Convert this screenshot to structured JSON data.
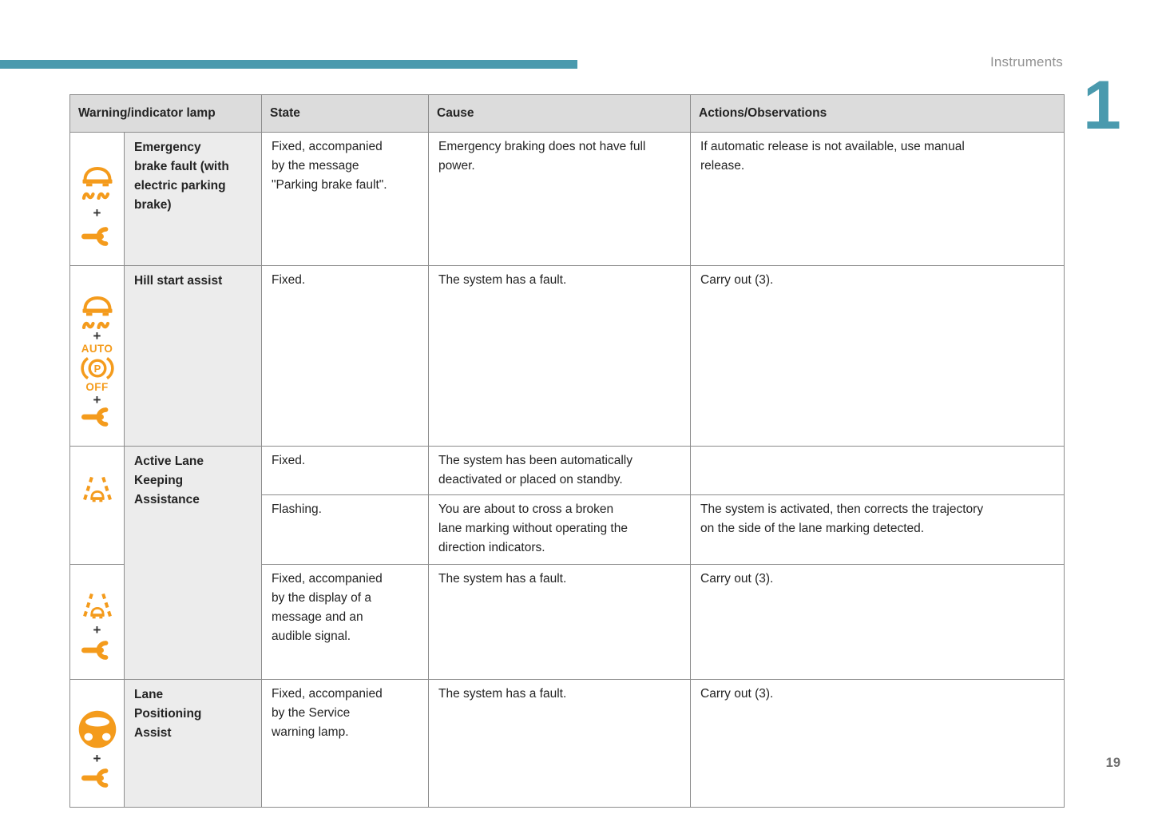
{
  "page": {
    "running_header": "Instruments",
    "chapter_number": "1",
    "page_number": "19"
  },
  "colors": {
    "accent": "#4a9aae",
    "icon": "#f49b1c"
  },
  "icon_text": {
    "plus-sign": "+",
    "auto-text": "AUTO",
    "off-text": "OFF"
  },
  "table": {
    "headers": [
      "Warning/indicator lamp",
      "State",
      "Cause",
      "Actions/Observations"
    ],
    "rows": [
      {
        "icon_stack": [
          "esp-car-icon",
          "plus-sign",
          "wrench-icon"
        ],
        "lamp": "Emergency\nbrake fault (with\nelectric parking\nbrake)",
        "state": "Fixed, accompanied\nby the message\n\"Parking brake fault\".",
        "cause": "Emergency braking does not have full\npower.",
        "actions": "If automatic release is not available, use manual\nrelease."
      },
      {
        "icon_stack": [
          "esp-car-icon",
          "plus-sign",
          "auto-text",
          "parking-brake-icon",
          "off-text",
          "plus-sign",
          "wrench-icon"
        ],
        "lamp": "Hill start assist",
        "state": "Fixed.",
        "cause": "The system has a fault.",
        "actions": "Carry out (3)."
      },
      {
        "icon_stack_top": [
          "lane-keeping-icon"
        ],
        "icon_stack_bottom": [
          "lane-keeping-icon",
          "plus-sign",
          "wrench-icon"
        ],
        "lamp": "Active Lane\nKeeping\nAssistance",
        "entries": [
          {
            "state": "Fixed.",
            "cause": "The system has been automatically\ndeactivated or placed on standby.",
            "actions": ""
          },
          {
            "state": "Flashing.",
            "cause": "You are about to cross a broken\nlane marking without operating the\ndirection indicators.",
            "actions": "The system is activated, then corrects the trajectory\non the side of the lane marking detected."
          },
          {
            "state": "Fixed, accompanied\nby the display of a\nmessage and an\naudible signal.",
            "cause": "The system has a fault.",
            "actions": "Carry out (3)."
          }
        ]
      },
      {
        "icon_stack": [
          "steering-wheel-icon",
          "plus-sign",
          "wrench-icon"
        ],
        "lamp": "Lane\nPositioning\nAssist",
        "state": "Fixed, accompanied\nby the Service\nwarning lamp.",
        "cause": "The system has a fault.",
        "actions": "Carry out (3)."
      }
    ]
  }
}
